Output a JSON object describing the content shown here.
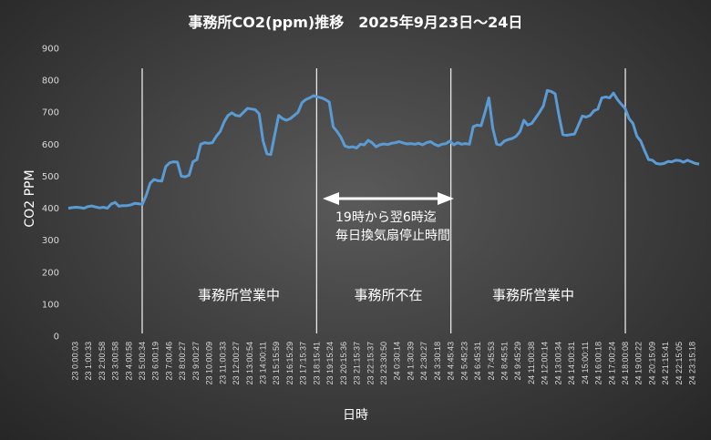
{
  "chart_data": {
    "type": "line",
    "title": "事務所CO2(ppm)推移　2025年9月23日～24日",
    "xlabel": "日時",
    "ylabel": "CO2 PPM",
    "ylim": [
      0,
      900
    ],
    "yticks": [
      0,
      100,
      200,
      300,
      400,
      500,
      600,
      700,
      800,
      900
    ],
    "grid": false,
    "series_color": "#5b9bd5",
    "x_tick_labels": [
      "23 0:00:03",
      "23 1:00:33",
      "23 2:00:58",
      "23 3:00:58",
      "23 4:00:58",
      "23 5:00:34",
      "23 6:00:19",
      "23 7:00:46",
      "23 8:00:27",
      "23 9:00:27",
      "23 10:00:09",
      "23 11:00:33",
      "23 12:00:27",
      "23 13:00:54",
      "23 14:00:11",
      "23 15:15:59",
      "23 16:15:29",
      "23 17:15:37",
      "23 18:15:41",
      "23 19:15:24",
      "23 20:15:36",
      "23 21:15:37",
      "23 22:15:37",
      "23 23:30:50",
      "24 0:30:14",
      "24 1:30:39",
      "24 2:30:27",
      "24 3:30:18",
      "24 4:45:43",
      "24 5:45:23",
      "24 6:45:31",
      "24 7:45:53",
      "24 8:45:51",
      "24 9:45:29",
      "24 11:00:38",
      "24 12:00:14",
      "24 13:00:34",
      "24 14:00:31",
      "24 15:00:11",
      "24 16:00:18",
      "24 17:00:24",
      "24 18:00:08",
      "24 19:00:22",
      "24 20:15:09",
      "24 21:15:41",
      "24 22:15:05",
      "24 23:15:18"
    ],
    "values": [
      400,
      402,
      403,
      402,
      400,
      405,
      407,
      404,
      401,
      403,
      400,
      413,
      418,
      406,
      408,
      408,
      410,
      415,
      414,
      412,
      440,
      478,
      490,
      486,
      485,
      530,
      542,
      545,
      544,
      500,
      498,
      503,
      545,
      552,
      600,
      605,
      603,
      605,
      625,
      640,
      670,
      690,
      698,
      690,
      688,
      700,
      712,
      710,
      708,
      695,
      610,
      570,
      568,
      630,
      690,
      680,
      675,
      680,
      690,
      700,
      730,
      740,
      745,
      752,
      748,
      745,
      740,
      732,
      655,
      640,
      622,
      595,
      590,
      592,
      588,
      600,
      598,
      612,
      605,
      592,
      598,
      601,
      599,
      603,
      605,
      608,
      604,
      601,
      602,
      600,
      603,
      598,
      605,
      608,
      600,
      595,
      600,
      602,
      610,
      598,
      605,
      600,
      602,
      600,
      655,
      660,
      658,
      700,
      745,
      650,
      600,
      598,
      610,
      615,
      618,
      625,
      640,
      675,
      660,
      665,
      682,
      700,
      720,
      768,
      765,
      758,
      690,
      630,
      628,
      630,
      632,
      660,
      688,
      685,
      690,
      705,
      710,
      745,
      748,
      745,
      760,
      740,
      725,
      712,
      680,
      665,
      625,
      610,
      580,
      552,
      550,
      540,
      538,
      540,
      546,
      545,
      550,
      549,
      544,
      550,
      545,
      540,
      538
    ],
    "vlines_at": [
      "23 5:00:34",
      "23 18:15:41",
      "24 4:45:43",
      "24 18:00:08"
    ],
    "annotations": {
      "arrow_text_line1": "19時から翌6時迄",
      "arrow_text_line2": "毎日換気扇停止時間",
      "region_labels": [
        "事務所営業中",
        "事務所不在",
        "事務所営業中"
      ]
    }
  }
}
